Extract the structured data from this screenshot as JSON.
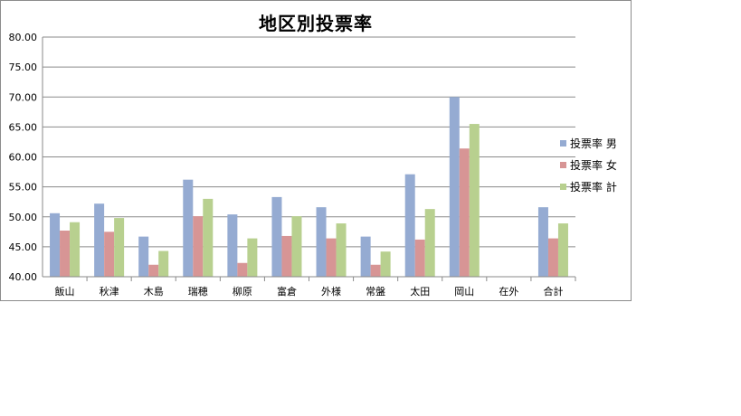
{
  "chart_data": {
    "type": "bar",
    "title": "地区別投票率",
    "xlabel": "",
    "ylabel": "",
    "categories": [
      "飯山",
      "秋津",
      "木島",
      "瑞穂",
      "柳原",
      "富倉",
      "外様",
      "常盤",
      "太田",
      "岡山",
      "在外",
      "合計"
    ],
    "series": [
      {
        "name": "投票率 男",
        "color": "#95abd2",
        "values": [
          50.6,
          52.2,
          46.7,
          56.2,
          50.4,
          53.3,
          51.6,
          46.7,
          57.1,
          70.0,
          null,
          51.6
        ]
      },
      {
        "name": "投票率 女",
        "color": "#d79595",
        "values": [
          47.7,
          47.5,
          42.0,
          50.1,
          42.3,
          46.8,
          46.4,
          42.0,
          46.2,
          61.4,
          null,
          46.4
        ]
      },
      {
        "name": "投票率 計",
        "color": "#b8d08f",
        "values": [
          49.1,
          49.8,
          44.3,
          53.0,
          46.4,
          50.1,
          48.9,
          44.2,
          51.3,
          65.5,
          null,
          48.9
        ]
      }
    ],
    "ylim": [
      40,
      80
    ],
    "yticks": [
      "40.00",
      "45.00",
      "50.00",
      "55.00",
      "60.00",
      "65.00",
      "70.00",
      "75.00",
      "80.00"
    ],
    "grid": true,
    "legend": "right"
  }
}
